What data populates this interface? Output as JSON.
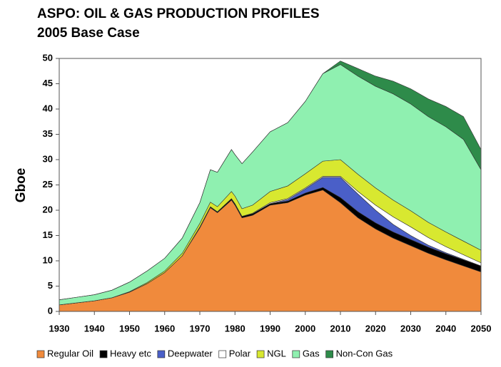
{
  "chart_data": {
    "type": "stacked-area",
    "title": "ASPO: OIL & GAS PRODUCTION PROFILES",
    "subtitle": "2005 Base Case",
    "y_label": "Gboe",
    "x": [
      1930,
      1935,
      1940,
      1945,
      1950,
      1955,
      1960,
      1965,
      1970,
      1973,
      1975,
      1979,
      1980,
      1982,
      1985,
      1990,
      1995,
      2000,
      2005,
      2010,
      2015,
      2020,
      2025,
      2030,
      2035,
      2040,
      2045,
      2050
    ],
    "series": [
      {
        "name": "Regular Oil",
        "color": "#f08a3c",
        "values": [
          1.3,
          1.7,
          2.1,
          2.7,
          3.8,
          5.5,
          7.7,
          11,
          16.5,
          20.5,
          19.5,
          22,
          21,
          18.5,
          19,
          21,
          21.5,
          23,
          24,
          21.5,
          18.5,
          16.3,
          14.5,
          13,
          11.5,
          10.2,
          9,
          7.8
        ]
      },
      {
        "name": "Heavy etc",
        "color": "#000000",
        "values": [
          0,
          0,
          0,
          0,
          0,
          0,
          0,
          0,
          0.2,
          0.2,
          0.2,
          0.3,
          0.3,
          0.3,
          0.3,
          0.3,
          0.3,
          0.4,
          0.5,
          1,
          1.2,
          1.2,
          1.2,
          1.2,
          1.2,
          1.2,
          1.2,
          1.2
        ]
      },
      {
        "name": "Deepwater",
        "color": "#4a5fc8",
        "values": [
          0,
          0,
          0,
          0,
          0,
          0,
          0,
          0,
          0,
          0,
          0,
          0,
          0,
          0,
          0,
          0,
          0.3,
          0.8,
          2,
          4,
          3.5,
          2.5,
          1.5,
          0.8,
          0.4,
          0.2,
          0.1,
          0
        ]
      },
      {
        "name": "Polar",
        "color": "#ffffff",
        "values": [
          0,
          0,
          0,
          0,
          0,
          0,
          0,
          0,
          0,
          0,
          0,
          0,
          0,
          0,
          0.1,
          0.2,
          0.2,
          0.2,
          0.2,
          0.2,
          0.5,
          1,
          1.5,
          1.7,
          1.5,
          1.2,
          0.9,
          0.6
        ]
      },
      {
        "name": "NGL",
        "color": "#d8e830",
        "values": [
          0,
          0,
          0,
          0,
          0.1,
          0.2,
          0.3,
          0.5,
          0.7,
          0.9,
          1,
          1.4,
          1.5,
          1.5,
          1.6,
          2.2,
          2.5,
          2.8,
          3,
          3.3,
          3.4,
          3.4,
          3.3,
          3.2,
          3,
          2.9,
          2.7,
          2.5
        ]
      },
      {
        "name": "Gas",
        "color": "#8ff0b0",
        "values": [
          1,
          1.1,
          1.2,
          1.5,
          1.9,
          2.3,
          2.5,
          3,
          4.1,
          6.4,
          6.8,
          8.3,
          8.2,
          8.9,
          10.5,
          11.8,
          12.5,
          14.3,
          17.3,
          18.8,
          19.4,
          20.1,
          21,
          21.1,
          20.9,
          20.8,
          20.1,
          15.9
        ]
      },
      {
        "name": "Non-Con Gas",
        "color": "#2e8b4a",
        "values": [
          0,
          0,
          0,
          0,
          0,
          0,
          0,
          0,
          0,
          0,
          0,
          0,
          0,
          0,
          0,
          0,
          0,
          0,
          0,
          0.7,
          1.5,
          2,
          2.5,
          3,
          3.5,
          4,
          4.5,
          4
        ]
      }
    ],
    "xlim": [
      1930,
      2050
    ],
    "xticks": [
      1930,
      1940,
      1950,
      1960,
      1970,
      1980,
      1990,
      2000,
      2010,
      2020,
      2030,
      2040,
      2050
    ],
    "ylim": [
      0,
      50
    ],
    "yticks": [
      0,
      5,
      10,
      15,
      20,
      25,
      30,
      35,
      40,
      45,
      50
    ],
    "grid": false,
    "legend": "bottom"
  }
}
